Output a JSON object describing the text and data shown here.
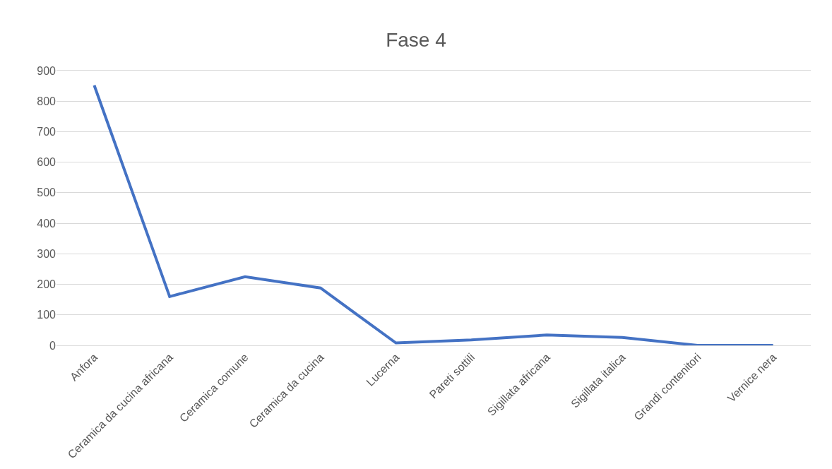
{
  "chart_data": {
    "type": "line",
    "title": "Fase 4",
    "categories": [
      "Anfora",
      "Ceramica da cucina africana",
      "Ceramica comune",
      "Ceramica da cucina",
      "Lucerna",
      "Pareti sottili",
      "Sigillata africana",
      "Sigillata italica",
      "Grandi contenitori",
      "Vernice nera"
    ],
    "series": [
      {
        "color": "#4472c4",
        "values": [
          852,
          160,
          225,
          188,
          8,
          18,
          34,
          26,
          0,
          0
        ]
      }
    ],
    "ylim": [
      0,
      900
    ],
    "yticks": [
      0,
      100,
      200,
      300,
      400,
      500,
      600,
      700,
      800,
      900
    ],
    "grid": "y",
    "marker": "none",
    "line_style": "solid"
  }
}
